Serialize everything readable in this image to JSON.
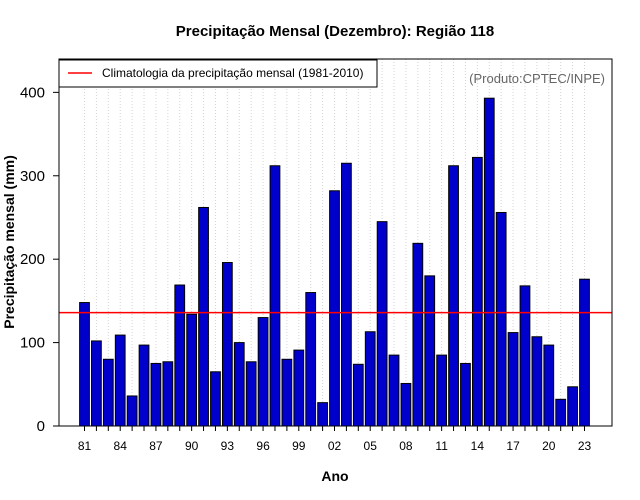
{
  "chart_data": {
    "type": "bar",
    "title": "Precipitação Mensal (Dezembro): Região 118",
    "xlabel": "Ano",
    "ylabel": "Precipitação mensal (mm)",
    "ylim": [
      0,
      440
    ],
    "yticks": [
      0,
      100,
      200,
      300,
      400
    ],
    "categories": [
      "1981",
      "1982",
      "1983",
      "1984",
      "1985",
      "1986",
      "1987",
      "1988",
      "1989",
      "1990",
      "1991",
      "1992",
      "1993",
      "1994",
      "1995",
      "1996",
      "1997",
      "1998",
      "1999",
      "2000",
      "2001",
      "2002",
      "2003",
      "2004",
      "2005",
      "2006",
      "2007",
      "2008",
      "2009",
      "2010",
      "2011",
      "2012",
      "2013",
      "2014",
      "2015",
      "2016",
      "2017",
      "2018",
      "2019",
      "2020",
      "2021",
      "2022",
      "2023"
    ],
    "xtick_labels": [
      "81",
      "84",
      "87",
      "90",
      "93",
      "96",
      "99",
      "02",
      "05",
      "08",
      "11",
      "14",
      "17",
      "20",
      "23"
    ],
    "xtick_every": 3,
    "values": [
      148,
      102,
      80,
      109,
      36,
      97,
      75,
      77,
      169,
      134,
      262,
      65,
      196,
      100,
      77,
      130,
      312,
      80,
      91,
      160,
      28,
      282,
      315,
      74,
      113,
      245,
      85,
      51,
      219,
      180,
      85,
      312,
      75,
      322,
      393,
      256,
      112,
      168,
      107,
      97,
      32,
      47,
      176
    ],
    "climatology": {
      "value": 136,
      "label": "Climatologia da precipitação mensal (1981-2010)",
      "color": "#ff0000"
    },
    "bar_color": "#0000cc",
    "grid": "vertical-dotted",
    "legend_position": "top-left",
    "annotation": "(Produto:CPTEC/INPE)"
  }
}
